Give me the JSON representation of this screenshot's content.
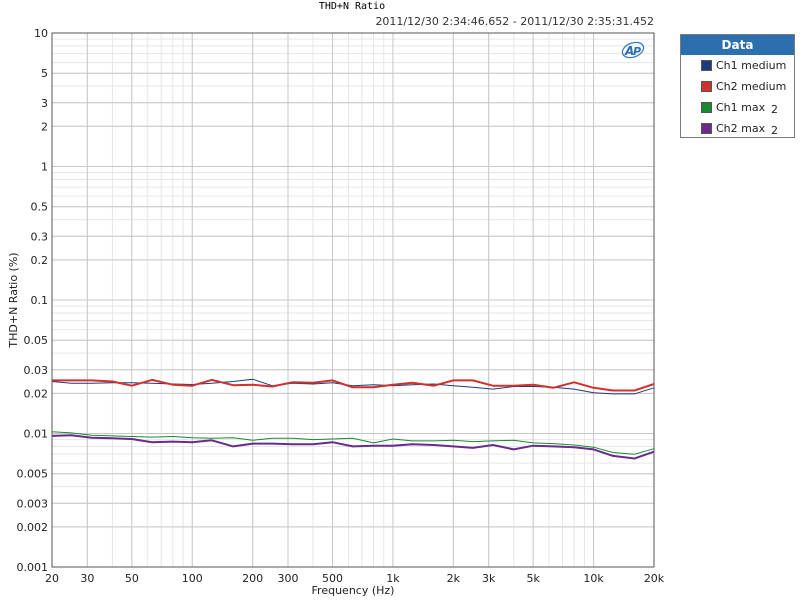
{
  "chart_data": {
    "type": "line",
    "title": "THD+N Ratio",
    "subtitle": "2011/12/30 2:34:46.652 - 2011/12/30 2:35:31.452",
    "xlabel": "Frequency (Hz)",
    "ylabel": "THD+N Ratio (%)",
    "xscale": "log",
    "yscale": "log",
    "xlim": [
      20,
      20000
    ],
    "ylim": [
      0.001,
      10
    ],
    "grid": true,
    "legend_position": "right",
    "x_ticks": [
      20,
      30,
      50,
      100,
      200,
      300,
      500,
      1000,
      2000,
      3000,
      5000,
      10000,
      20000
    ],
    "x_tick_labels": [
      "20",
      "30",
      "50",
      "100",
      "200",
      "300",
      "500",
      "1k",
      "2k",
      "3k",
      "5k",
      "10k",
      "20k"
    ],
    "y_ticks": [
      0.001,
      0.002,
      0.003,
      0.005,
      0.01,
      0.02,
      0.03,
      0.05,
      0.1,
      0.2,
      0.3,
      0.5,
      1,
      2,
      3,
      5,
      10
    ],
    "y_tick_labels": [
      "0.001",
      "0.002",
      "0.003",
      "0.005",
      "0.01",
      "0.02",
      "0.03",
      "0.05",
      "0.1",
      "0.2",
      "0.3",
      "0.5",
      "1",
      "2",
      "3",
      "5",
      "10"
    ],
    "x": [
      20,
      25,
      31.5,
      40,
      50,
      63,
      80,
      100,
      125,
      160,
      200,
      250,
      315,
      400,
      500,
      630,
      800,
      1000,
      1250,
      1600,
      2000,
      2500,
      3150,
      4000,
      5000,
      6300,
      8000,
      10000,
      12500,
      16000,
      20000
    ],
    "series": [
      {
        "name": "Ch1 medium",
        "color": "#1f3a7a",
        "values": [
          0.0245,
          0.0238,
          0.0238,
          0.024,
          0.024,
          0.0238,
          0.0235,
          0.0233,
          0.0238,
          0.0245,
          0.0255,
          0.0228,
          0.0238,
          0.0235,
          0.024,
          0.0228,
          0.0232,
          0.0228,
          0.0232,
          0.0235,
          0.0228,
          0.0222,
          0.0215,
          0.0225,
          0.0225,
          0.0222,
          0.0215,
          0.0202,
          0.0198,
          0.0198,
          0.022
        ]
      },
      {
        "name": "Ch2 medium",
        "color": "#d0312d",
        "values": [
          0.025,
          0.025,
          0.025,
          0.0245,
          0.0228,
          0.0252,
          0.0232,
          0.0228,
          0.0252,
          0.023,
          0.0232,
          0.0225,
          0.0242,
          0.024,
          0.025,
          0.0222,
          0.0222,
          0.0232,
          0.024,
          0.0228,
          0.025,
          0.025,
          0.0228,
          0.0228,
          0.0232,
          0.022,
          0.0242,
          0.022,
          0.021,
          0.021,
          0.0235
        ]
      },
      {
        "name": "Ch1 max",
        "name_suffix": "2",
        "color": "#1a8a2e",
        "values": [
          0.0103,
          0.0101,
          0.0097,
          0.0096,
          0.0095,
          0.0094,
          0.0095,
          0.0093,
          0.0092,
          0.0093,
          0.0089,
          0.0092,
          0.0092,
          0.009,
          0.0091,
          0.0092,
          0.0085,
          0.0091,
          0.0088,
          0.0088,
          0.0089,
          0.0087,
          0.0088,
          0.0089,
          0.0085,
          0.0084,
          0.0082,
          0.0079,
          0.0072,
          0.007,
          0.0077
        ]
      },
      {
        "name": "Ch2 max",
        "name_suffix": "2",
        "color": "#6a2a8e",
        "values": [
          0.0096,
          0.0097,
          0.0093,
          0.0092,
          0.0091,
          0.0086,
          0.0087,
          0.0086,
          0.0089,
          0.008,
          0.0084,
          0.0084,
          0.0083,
          0.0083,
          0.0086,
          0.008,
          0.0081,
          0.0081,
          0.0083,
          0.0082,
          0.008,
          0.0078,
          0.0082,
          0.0076,
          0.0081,
          0.008,
          0.0079,
          0.0076,
          0.0068,
          0.0065,
          0.0073
        ]
      }
    ]
  },
  "legend": {
    "title": "Data",
    "items": [
      {
        "label": "Ch1 medium",
        "sub": "",
        "color": "#1f3a7a"
      },
      {
        "label": "Ch2 medium",
        "sub": "",
        "color": "#d0312d"
      },
      {
        "label": "Ch1 max",
        "sub": "2",
        "color": "#1a8a2e"
      },
      {
        "label": "Ch2 max",
        "sub": "2",
        "color": "#6a2a8e"
      }
    ]
  },
  "logo": {
    "text": "AP",
    "icon": "ap-logo-icon"
  }
}
